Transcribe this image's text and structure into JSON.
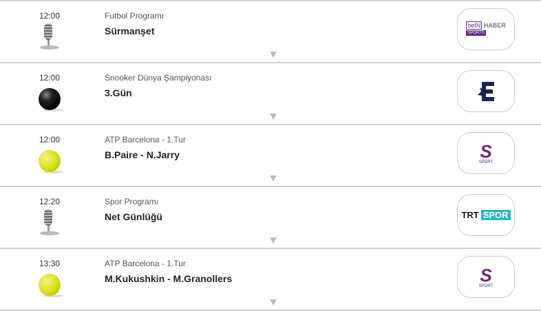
{
  "items": [
    {
      "time": "12:00",
      "category": "Futbol Programı",
      "title": "Sürmanşet",
      "icon": "microphone-icon",
      "channel_logo": "bein-sports-haber-logo",
      "logo_text": [
        "beIN",
        "HABER",
        "SPORTS"
      ]
    },
    {
      "time": "12:00",
      "category": "Snooker Dünya Şampiyonası",
      "title": "3.Gün",
      "icon": "snooker-ball-icon",
      "channel_logo": "eurosport-logo"
    },
    {
      "time": "12:00",
      "category": "ATP Barcelona - 1.Tur",
      "title": "B.Paire - N.Jarry",
      "icon": "tennis-ball-icon",
      "channel_logo": "s-sport-logo",
      "logo_text": "SPORT"
    },
    {
      "time": "12:20",
      "category": "Spor Programı",
      "title": "Net Günlüğü",
      "icon": "microphone-icon",
      "channel_logo": "trt-spor-logo",
      "logo_text": [
        "TRT",
        "SPOR"
      ]
    },
    {
      "time": "13:30",
      "category": "ATP Barcelona - 1.Tur",
      "title": "M.Kukushkin - M.Granollers",
      "icon": "tennis-ball-icon",
      "channel_logo": "s-sport-logo",
      "logo_text": "SPORT"
    }
  ]
}
